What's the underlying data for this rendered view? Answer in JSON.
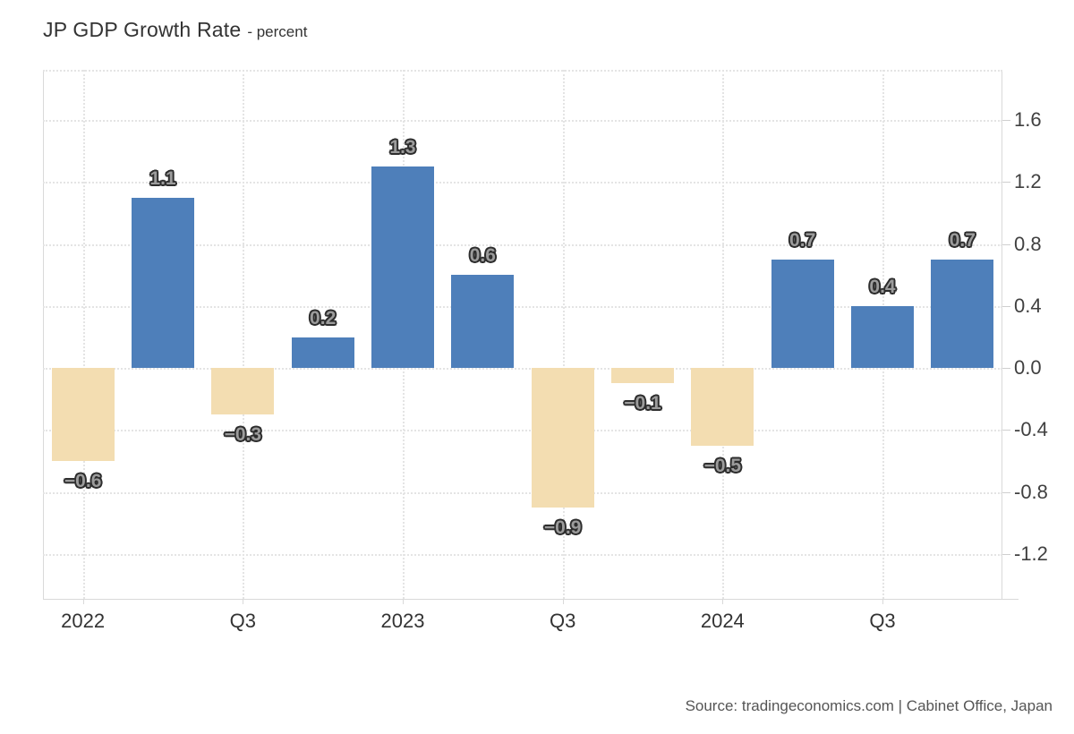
{
  "chart_data": {
    "type": "bar",
    "title": "JP GDP Growth Rate",
    "subtitle": "- percent",
    "values": [
      -0.6,
      1.1,
      -0.3,
      0.2,
      1.3,
      0.6,
      -0.9,
      -0.1,
      -0.5,
      0.7,
      0.4,
      0.7
    ],
    "bar_labels": [
      "−0.6",
      "1.1",
      "−0.3",
      "0.2",
      "1.3",
      "0.6",
      "−0.9",
      "−0.1",
      "−0.5",
      "0.7",
      "0.4",
      "0.7"
    ],
    "x_ticks": [
      {
        "label": "2022",
        "slot": 0
      },
      {
        "label": "Q3",
        "slot": 2
      },
      {
        "label": "2023",
        "slot": 4
      },
      {
        "label": "Q3",
        "slot": 6
      },
      {
        "label": "2024",
        "slot": 8
      },
      {
        "label": "Q3",
        "slot": 10
      }
    ],
    "y_ticks": [
      1.6,
      1.2,
      0.8,
      0.4,
      0.0,
      -0.4,
      -0.8,
      -1.2
    ],
    "y_tick_labels": [
      "1.6",
      "1.2",
      "0.8",
      "0.4",
      "0.0",
      "-0.4",
      "-0.8",
      "-1.2"
    ],
    "ylim": [
      -1.49,
      1.925
    ],
    "grid": true,
    "legend": "none",
    "y_axis_position": "right",
    "colors": {
      "positive": "#4e7fba",
      "negative": "#f3ddb1",
      "grid": "#e4e4e4",
      "axis_line": "#d9d9d9",
      "title_text": "#333333",
      "axis_text": "#404040",
      "bar_label_fill": "#9c9c9c",
      "bar_label_outline": "#2d2d2d"
    },
    "source": "Source: tradingeconomics.com | Cabinet Office, Japan"
  }
}
